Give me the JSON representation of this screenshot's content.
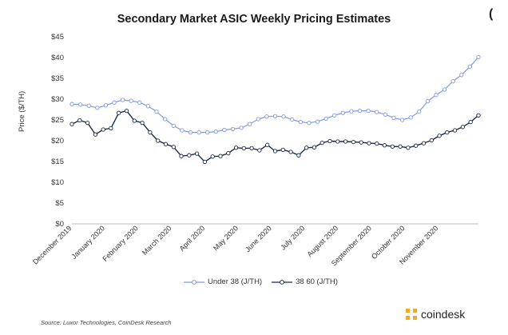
{
  "title": "Secondary Market ASIC Weekly Pricing Estimates",
  "edge_glyph": "(",
  "footer": {
    "source": "Source: Luxor Technologies, CoinDesk Research",
    "brand": "coindesk",
    "brand_icon": "coindesk-logo-icon",
    "brand_color": "#f5a623"
  },
  "chart_data": {
    "type": "line",
    "title": "Secondary Market ASIC Weekly Pricing Estimates",
    "xlabel": "",
    "ylabel": "Price ($/TH)",
    "ylim": [
      0,
      45
    ],
    "yticks": [
      "$0",
      "$5",
      "$10",
      "$15",
      "$20",
      "$25",
      "$30",
      "$35",
      "$40",
      "$45"
    ],
    "xtick_labels": [
      "December 2019",
      "January 2020",
      "February 2020",
      "March 2020",
      "April 2020",
      "May 2020",
      "June 2020",
      "July 2020",
      "August 2020",
      "September 2020",
      "October 2020",
      "November 2020"
    ],
    "legend_position": "bottom",
    "grid": false,
    "series": [
      {
        "name": "Under 38 (J/TH)",
        "color": "#7f9ae0",
        "marker": "open-circle",
        "values": [
          28.8,
          28.7,
          28.4,
          27.9,
          28.5,
          29.2,
          29.8,
          29.6,
          29.2,
          28.3,
          27.0,
          25.2,
          23.6,
          22.5,
          22.0,
          22.0,
          22.0,
          22.2,
          22.6,
          22.8,
          23.1,
          24.0,
          25.2,
          25.8,
          25.9,
          25.8,
          25.1,
          24.5,
          24.3,
          24.6,
          25.3,
          26.1,
          26.7,
          27.1,
          27.2,
          27.2,
          26.9,
          26.3,
          25.5,
          25.0,
          25.6,
          27.0,
          29.5,
          31.0,
          32.3,
          34.3,
          35.8,
          37.8,
          40.1
        ]
      },
      {
        "name": "38 60 (J/TH)",
        "color": "#1b2a4a",
        "marker": "open-circle",
        "values": [
          24.0,
          24.9,
          24.3,
          21.5,
          22.7,
          23.0,
          26.7,
          27.2,
          24.8,
          24.3,
          22.0,
          20.0,
          19.2,
          18.5,
          16.3,
          16.5,
          16.9,
          14.9,
          16.2,
          16.3,
          17.0,
          18.3,
          18.2,
          18.2,
          17.7,
          19.0,
          17.5,
          17.8,
          17.3,
          16.5,
          18.3,
          18.4,
          19.5,
          19.9,
          19.8,
          19.8,
          19.7,
          19.6,
          19.4,
          19.3,
          18.9,
          18.6,
          18.6,
          18.3,
          18.8,
          19.4,
          20.1,
          21.2,
          22.0,
          22.5,
          23.3,
          24.5,
          26.1
        ]
      }
    ]
  }
}
